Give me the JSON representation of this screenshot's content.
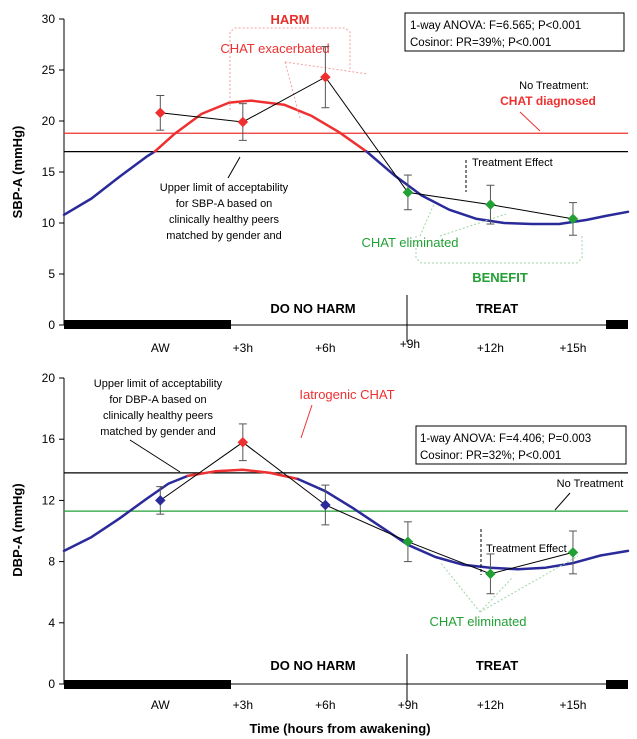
{
  "colors": {
    "red": "#ee3030",
    "green": "#22a035",
    "blue": "#2a2a9a",
    "black": "#000000",
    "gray": "#888888",
    "harm_text": "#e8302a",
    "benefit_text": "#22a035"
  },
  "chart_data": [
    {
      "type": "line",
      "ylabel": "SBP-A (mmHg)",
      "ylim": [
        0,
        30
      ],
      "yticks": [
        0,
        5,
        10,
        15,
        20,
        25,
        30
      ],
      "xlim": [
        -3.5,
        17
      ],
      "categories": [
        "AW",
        "+3h",
        "+6h",
        "+9h",
        "+12h",
        "+15h"
      ],
      "category_hours": [
        0,
        3,
        6,
        9,
        12,
        15
      ],
      "stats_box": [
        "1-way ANOVA: F=6.565; P<0.001",
        "Cosinor: PR=39%; P<0.001"
      ],
      "observed": {
        "color": "red",
        "values": [
          20.8,
          19.9,
          24.3,
          13.0,
          11.8,
          10.4
        ],
        "errors": [
          1.7,
          1.8,
          3.0,
          1.7,
          1.9,
          1.6
        ],
        "point_colors": [
          "red",
          "red",
          "red",
          "green",
          "green",
          "green"
        ]
      },
      "fitted_segments": [
        {
          "color": "blue",
          "points": [
            [
              -3.5,
              10.8
            ],
            [
              -2.5,
              12.4
            ],
            [
              -1.5,
              14.5
            ],
            [
              -0.5,
              16.5
            ],
            [
              -0.2,
              17.0
            ]
          ]
        },
        {
          "color": "red",
          "points": [
            [
              -0.2,
              17.0
            ],
            [
              0.5,
              18.7
            ],
            [
              1.5,
              20.7
            ],
            [
              2.5,
              21.8
            ],
            [
              3.3,
              22.0
            ],
            [
              4.5,
              21.6
            ],
            [
              5.5,
              20.5
            ],
            [
              6.5,
              18.9
            ],
            [
              7.5,
              17.0
            ]
          ]
        },
        {
          "color": "blue",
          "points": [
            [
              7.5,
              17.0
            ],
            [
              8.5,
              14.7
            ],
            [
              9.5,
              12.7
            ],
            [
              10.5,
              11.3
            ],
            [
              11.5,
              10.4
            ],
            [
              12.5,
              10.0
            ],
            [
              13.5,
              9.9
            ],
            [
              14.5,
              9.9
            ],
            [
              15.5,
              10.3
            ],
            [
              16.2,
              10.7
            ],
            [
              17.0,
              11.1
            ]
          ]
        }
      ],
      "reference_lines": [
        {
          "y": 18.8,
          "color": "red"
        },
        {
          "y": 17.0,
          "color": "black"
        }
      ],
      "annotations": {
        "harm": "HARM",
        "chat_exacerbated": "CHAT exacerbated",
        "no_treatment": "No Treatment:",
        "chat_diagnosed": "CHAT diagnosed",
        "treatment_effect": "Treatment Effect",
        "upper_limit": [
          "Upper limit of acceptability",
          "for SBP-A based on",
          "clinically healthy peers",
          "matched by gender and"
        ],
        "chat_eliminated": "CHAT eliminated",
        "benefit": "BENEFIT",
        "do_no_harm": "DO NO HARM",
        "treat": "TREAT"
      }
    },
    {
      "type": "line",
      "ylabel": "DBP-A (mmHg)",
      "xlabel": "Time (hours from awakening)",
      "ylim": [
        0,
        20
      ],
      "yticks": [
        0,
        4,
        8,
        12,
        16,
        20
      ],
      "xlim": [
        -3.5,
        17
      ],
      "categories": [
        "AW",
        "+3h",
        "+6h",
        "+9h",
        "+12h",
        "+15h"
      ],
      "category_hours": [
        0,
        3,
        6,
        9,
        12,
        15
      ],
      "stats_box": [
        "1-way ANOVA: F=4.406; P=0.003",
        "Cosinor: PR=32%; P<0.001"
      ],
      "observed": {
        "color": "black",
        "values": [
          12.0,
          15.8,
          11.7,
          9.3,
          7.2,
          8.6
        ],
        "errors": [
          0.9,
          1.2,
          1.3,
          1.3,
          1.3,
          1.4
        ],
        "point_colors": [
          "blue",
          "red",
          "blue",
          "green",
          "green",
          "green"
        ]
      },
      "fitted_segments": [
        {
          "color": "blue",
          "points": [
            [
              -3.5,
              8.7
            ],
            [
              -2.5,
              9.6
            ],
            [
              -1.5,
              10.8
            ],
            [
              -0.5,
              12.1
            ],
            [
              0.3,
              13.1
            ],
            [
              1.0,
              13.6
            ]
          ]
        },
        {
          "color": "red",
          "points": [
            [
              1.0,
              13.6
            ],
            [
              2.0,
              13.9
            ],
            [
              3.0,
              14.0
            ],
            [
              4.0,
              13.8
            ],
            [
              5.0,
              13.4
            ]
          ]
        },
        {
          "color": "blue",
          "points": [
            [
              5.0,
              13.4
            ],
            [
              6.0,
              12.6
            ],
            [
              7.0,
              11.5
            ],
            [
              8.0,
              10.3
            ],
            [
              9.0,
              9.1
            ],
            [
              10.0,
              8.3
            ],
            [
              11.0,
              7.8
            ],
            [
              12.0,
              7.6
            ],
            [
              13.0,
              7.5
            ],
            [
              14.0,
              7.6
            ],
            [
              15.0,
              7.9
            ],
            [
              16.0,
              8.4
            ],
            [
              17.0,
              8.7
            ]
          ]
        }
      ],
      "reference_lines": [
        {
          "y": 13.8,
          "color": "black"
        },
        {
          "y": 11.3,
          "color": "green"
        }
      ],
      "annotations": {
        "upper_limit": [
          "Upper limit of acceptability",
          "for DBP-A based on",
          "clinically healthy peers",
          "matched by gender and"
        ],
        "iatrogenic_chat": "Iatrogenic CHAT",
        "no_treatment": "No Treatment",
        "treatment_effect": "Treatment Effect",
        "chat_eliminated": "CHAT eliminated",
        "do_no_harm": "DO NO HARM",
        "treat": "TREAT"
      }
    }
  ]
}
